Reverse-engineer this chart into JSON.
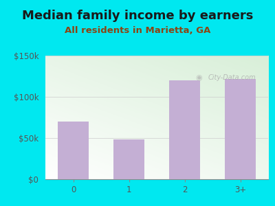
{
  "title": "Median family income by earners",
  "subtitle": "All residents in Marietta, GA",
  "categories": [
    "0",
    "1",
    "2",
    "3+"
  ],
  "values": [
    70000,
    48000,
    120000,
    122000
  ],
  "bar_color": "#c4afd4",
  "title_color": "#1a1a1a",
  "subtitle_color": "#8b4513",
  "bg_outer": "#00e8f0",
  "ylim": [
    0,
    150000
  ],
  "yticks": [
    0,
    50000,
    100000,
    150000
  ],
  "ytick_labels": [
    "$0",
    "$50k",
    "$100k",
    "$150k"
  ],
  "watermark": "City-Data.com",
  "title_fontsize": 13,
  "subtitle_fontsize": 9.5,
  "tick_fontsize": 8.5,
  "axis_color": "#555555"
}
